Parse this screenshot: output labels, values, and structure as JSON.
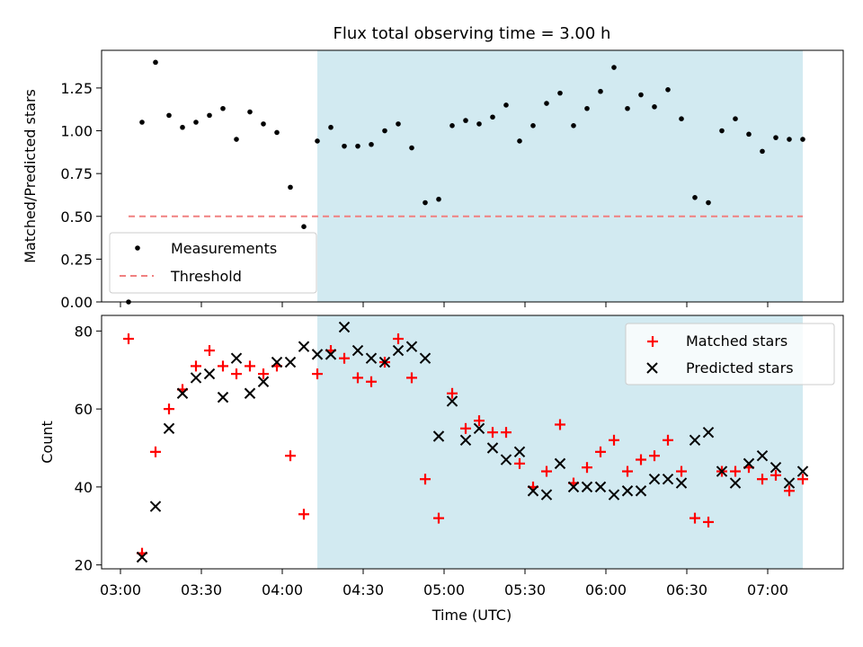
{
  "chart_data": [
    {
      "type": "scatter",
      "title": "Flux total observing time = 3.00 h",
      "ylabel": "Matched/Predicted stars",
      "xlim": [
        "02:53",
        "07:28"
      ],
      "ylim": [
        0,
        1.47
      ],
      "yticks": [
        0.0,
        0.25,
        0.5,
        0.75,
        1.0,
        1.25
      ],
      "ytick_labels": [
        "0.00",
        "0.25",
        "0.50",
        "0.75",
        "1.00",
        "1.25"
      ],
      "shaded_span": [
        "04:13",
        "07:13"
      ],
      "shade_color": "#add8e6",
      "threshold": {
        "name": "Threshold",
        "value": 0.5,
        "x_range": [
          "03:03",
          "07:13"
        ],
        "color": "#f08080"
      },
      "legend_position": "lower-left",
      "series": [
        {
          "name": "Measurements",
          "color": "#000000",
          "marker": "dot",
          "x": [
            "03:03",
            "03:08",
            "03:13",
            "03:18",
            "03:23",
            "03:28",
            "03:33",
            "03:38",
            "03:43",
            "03:48",
            "03:53",
            "03:58",
            "04:03",
            "04:08",
            "04:13",
            "04:18",
            "04:23",
            "04:28",
            "04:33",
            "04:38",
            "04:43",
            "04:48",
            "04:53",
            "04:58",
            "05:03",
            "05:08",
            "05:13",
            "05:18",
            "05:23",
            "05:28",
            "05:33",
            "05:38",
            "05:43",
            "05:48",
            "05:53",
            "05:58",
            "06:03",
            "06:08",
            "06:13",
            "06:18",
            "06:23",
            "06:28",
            "06:33",
            "06:38",
            "06:43",
            "06:48",
            "06:53",
            "06:58",
            "07:03",
            "07:08",
            "07:13"
          ],
          "y": [
            0.0,
            1.05,
            1.4,
            1.09,
            1.02,
            1.05,
            1.09,
            1.13,
            0.95,
            1.11,
            1.04,
            0.99,
            0.67,
            0.44,
            0.94,
            1.02,
            0.91,
            0.91,
            0.92,
            1.0,
            1.04,
            0.9,
            0.58,
            0.6,
            1.03,
            1.06,
            1.04,
            1.08,
            1.15,
            0.94,
            1.03,
            1.16,
            1.22,
            1.03,
            1.13,
            1.23,
            1.37,
            1.13,
            1.21,
            1.14,
            1.24,
            1.07,
            0.61,
            0.58,
            1.0,
            1.07,
            0.98,
            0.88,
            0.96,
            0.95,
            0.95
          ]
        }
      ]
    },
    {
      "type": "scatter",
      "xlabel": "Time (UTC)",
      "ylabel": "Count",
      "xlim": [
        "02:53",
        "07:28"
      ],
      "ylim": [
        19,
        84
      ],
      "yticks": [
        20,
        40,
        60,
        80
      ],
      "xticks": [
        "03:00",
        "03:30",
        "04:00",
        "04:30",
        "05:00",
        "05:30",
        "06:00",
        "06:30",
        "07:00"
      ],
      "shaded_span": [
        "04:13",
        "07:13"
      ],
      "shade_color": "#add8e6",
      "legend_position": "upper-right",
      "series": [
        {
          "name": "Matched stars",
          "color": "#ff0000",
          "marker": "plus",
          "x": [
            "03:03",
            "03:08",
            "03:13",
            "03:18",
            "03:23",
            "03:28",
            "03:33",
            "03:38",
            "03:43",
            "03:48",
            "03:53",
            "03:58",
            "04:03",
            "04:08",
            "04:13",
            "04:18",
            "04:23",
            "04:28",
            "04:33",
            "04:38",
            "04:43",
            "04:48",
            "04:53",
            "04:58",
            "05:03",
            "05:08",
            "05:13",
            "05:18",
            "05:23",
            "05:28",
            "05:33",
            "05:38",
            "05:43",
            "05:48",
            "05:53",
            "05:58",
            "06:03",
            "06:08",
            "06:13",
            "06:18",
            "06:23",
            "06:28",
            "06:33",
            "06:38",
            "06:43",
            "06:48",
            "06:53",
            "06:58",
            "07:03",
            "07:08",
            "07:13"
          ],
          "y": [
            78,
            23,
            49,
            60,
            65,
            71,
            75,
            71,
            69,
            71,
            69,
            71,
            48,
            33,
            69,
            75,
            73,
            68,
            67,
            72,
            78,
            68,
            42,
            32,
            64,
            55,
            57,
            54,
            54,
            46,
            40,
            44,
            56,
            41,
            45,
            49,
            52,
            44,
            47,
            48,
            52,
            44,
            32,
            31,
            44,
            44,
            45,
            42,
            43,
            39,
            42
          ]
        },
        {
          "name": "Predicted stars",
          "color": "#000000",
          "marker": "x",
          "x": [
            "03:08",
            "03:13",
            "03:18",
            "03:23",
            "03:28",
            "03:33",
            "03:38",
            "03:43",
            "03:48",
            "03:53",
            "03:58",
            "04:03",
            "04:08",
            "04:13",
            "04:18",
            "04:23",
            "04:28",
            "04:33",
            "04:38",
            "04:43",
            "04:48",
            "04:53",
            "04:58",
            "05:03",
            "05:08",
            "05:13",
            "05:18",
            "05:23",
            "05:28",
            "05:33",
            "05:38",
            "05:43",
            "05:48",
            "05:53",
            "05:58",
            "06:03",
            "06:08",
            "06:13",
            "06:18",
            "06:23",
            "06:28",
            "06:33",
            "06:38",
            "06:43",
            "06:48",
            "06:53",
            "06:58",
            "07:03",
            "07:08",
            "07:13"
          ],
          "y": [
            22,
            35,
            55,
            64,
            68,
            69,
            63,
            73,
            64,
            67,
            72,
            72,
            76,
            74,
            74,
            81,
            75,
            73,
            72,
            75,
            76,
            73,
            53,
            62,
            52,
            55,
            50,
            47,
            49,
            39,
            38,
            46,
            40,
            40,
            40,
            38,
            39,
            39,
            42,
            42,
            41,
            52,
            54,
            44,
            41,
            46,
            48,
            45,
            41,
            44
          ]
        }
      ]
    }
  ]
}
